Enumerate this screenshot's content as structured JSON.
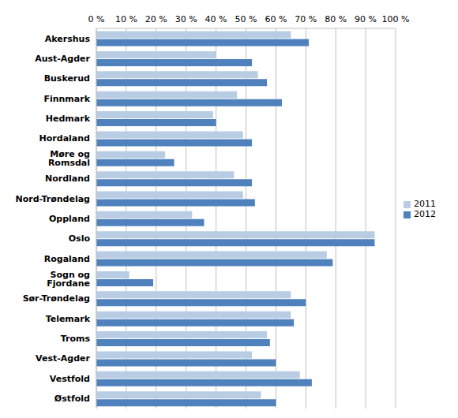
{
  "chart_data": {
    "type": "bar",
    "orientation": "horizontal",
    "categories": [
      "Akershus",
      "Aust-Agder",
      "Buskerud",
      "Finnmark",
      "Hedmark",
      "Hordaland",
      "Møre og Romsdal",
      "Nordland",
      "Nord-Trøndelag",
      "Oppland",
      "Oslo",
      "Rogaland",
      "Sogn og Fjordane",
      "Sør-Trøndelag",
      "Telemark",
      "Troms",
      "Vest-Agder",
      "Vestfold",
      "Østfold"
    ],
    "series": [
      {
        "name": "2011",
        "color": "#b8cce4",
        "values": [
          65,
          40,
          54,
          47,
          39,
          49,
          23,
          46,
          49,
          32,
          93,
          77,
          11,
          65,
          65,
          57,
          52,
          68,
          55
        ]
      },
      {
        "name": "2012",
        "color": "#4f81bd",
        "values": [
          71,
          52,
          57,
          62,
          40,
          52,
          26,
          52,
          53,
          36,
          93,
          79,
          19,
          70,
          66,
          58,
          60,
          72,
          60
        ]
      }
    ],
    "xlim": [
      0,
      100
    ],
    "xticks": [
      {
        "value": 0,
        "label": "0 %"
      },
      {
        "value": 10,
        "label": "10 %"
      },
      {
        "value": 20,
        "label": "20 %"
      },
      {
        "value": 30,
        "label": "30 %"
      },
      {
        "value": 40,
        "label": "40 %"
      },
      {
        "value": 50,
        "label": "50 %"
      },
      {
        "value": 60,
        "label": "60 %"
      },
      {
        "value": 70,
        "label": "70 %"
      },
      {
        "value": 80,
        "label": "80 %"
      },
      {
        "value": 90,
        "label": "90 %"
      },
      {
        "value": 100,
        "label": "100 %"
      }
    ],
    "grid": true,
    "legend": "right"
  }
}
